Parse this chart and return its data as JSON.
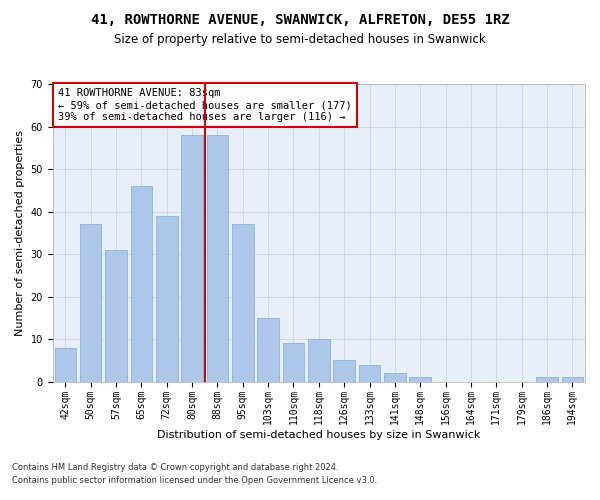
{
  "title": "41, ROWTHORNE AVENUE, SWANWICK, ALFRETON, DE55 1RZ",
  "subtitle": "Size of property relative to semi-detached houses in Swanwick",
  "xlabel": "Distribution of semi-detached houses by size in Swanwick",
  "ylabel": "Number of semi-detached properties",
  "categories": [
    "42sqm",
    "50sqm",
    "57sqm",
    "65sqm",
    "72sqm",
    "80sqm",
    "88sqm",
    "95sqm",
    "103sqm",
    "110sqm",
    "118sqm",
    "126sqm",
    "133sqm",
    "141sqm",
    "148sqm",
    "156sqm",
    "164sqm",
    "171sqm",
    "179sqm",
    "186sqm",
    "194sqm"
  ],
  "values": [
    8,
    37,
    31,
    46,
    39,
    58,
    58,
    37,
    15,
    9,
    10,
    5,
    4,
    2,
    1,
    0,
    0,
    0,
    0,
    1,
    1
  ],
  "bar_color": "#aec6e8",
  "bar_edge_color": "#7aafd4",
  "vline_color": "#cc0000",
  "annotation_text": "41 ROWTHORNE AVENUE: 83sqm\n← 59% of semi-detached houses are smaller (177)\n39% of semi-detached houses are larger (116) →",
  "annotation_box_color": "#ffffff",
  "annotation_box_edge": "#cc0000",
  "ylim": [
    0,
    70
  ],
  "yticks": [
    0,
    10,
    20,
    30,
    40,
    50,
    60,
    70
  ],
  "footer1": "Contains HM Land Registry data © Crown copyright and database right 2024.",
  "footer2": "Contains public sector information licensed under the Open Government Licence v3.0.",
  "bg_color": "#ffffff",
  "plot_bg_color": "#e8eef8",
  "grid_color": "#c8d4e8",
  "title_fontsize": 10,
  "subtitle_fontsize": 8.5,
  "axis_label_fontsize": 8,
  "tick_fontsize": 7,
  "annotation_fontsize": 7.5,
  "footer_fontsize": 6
}
